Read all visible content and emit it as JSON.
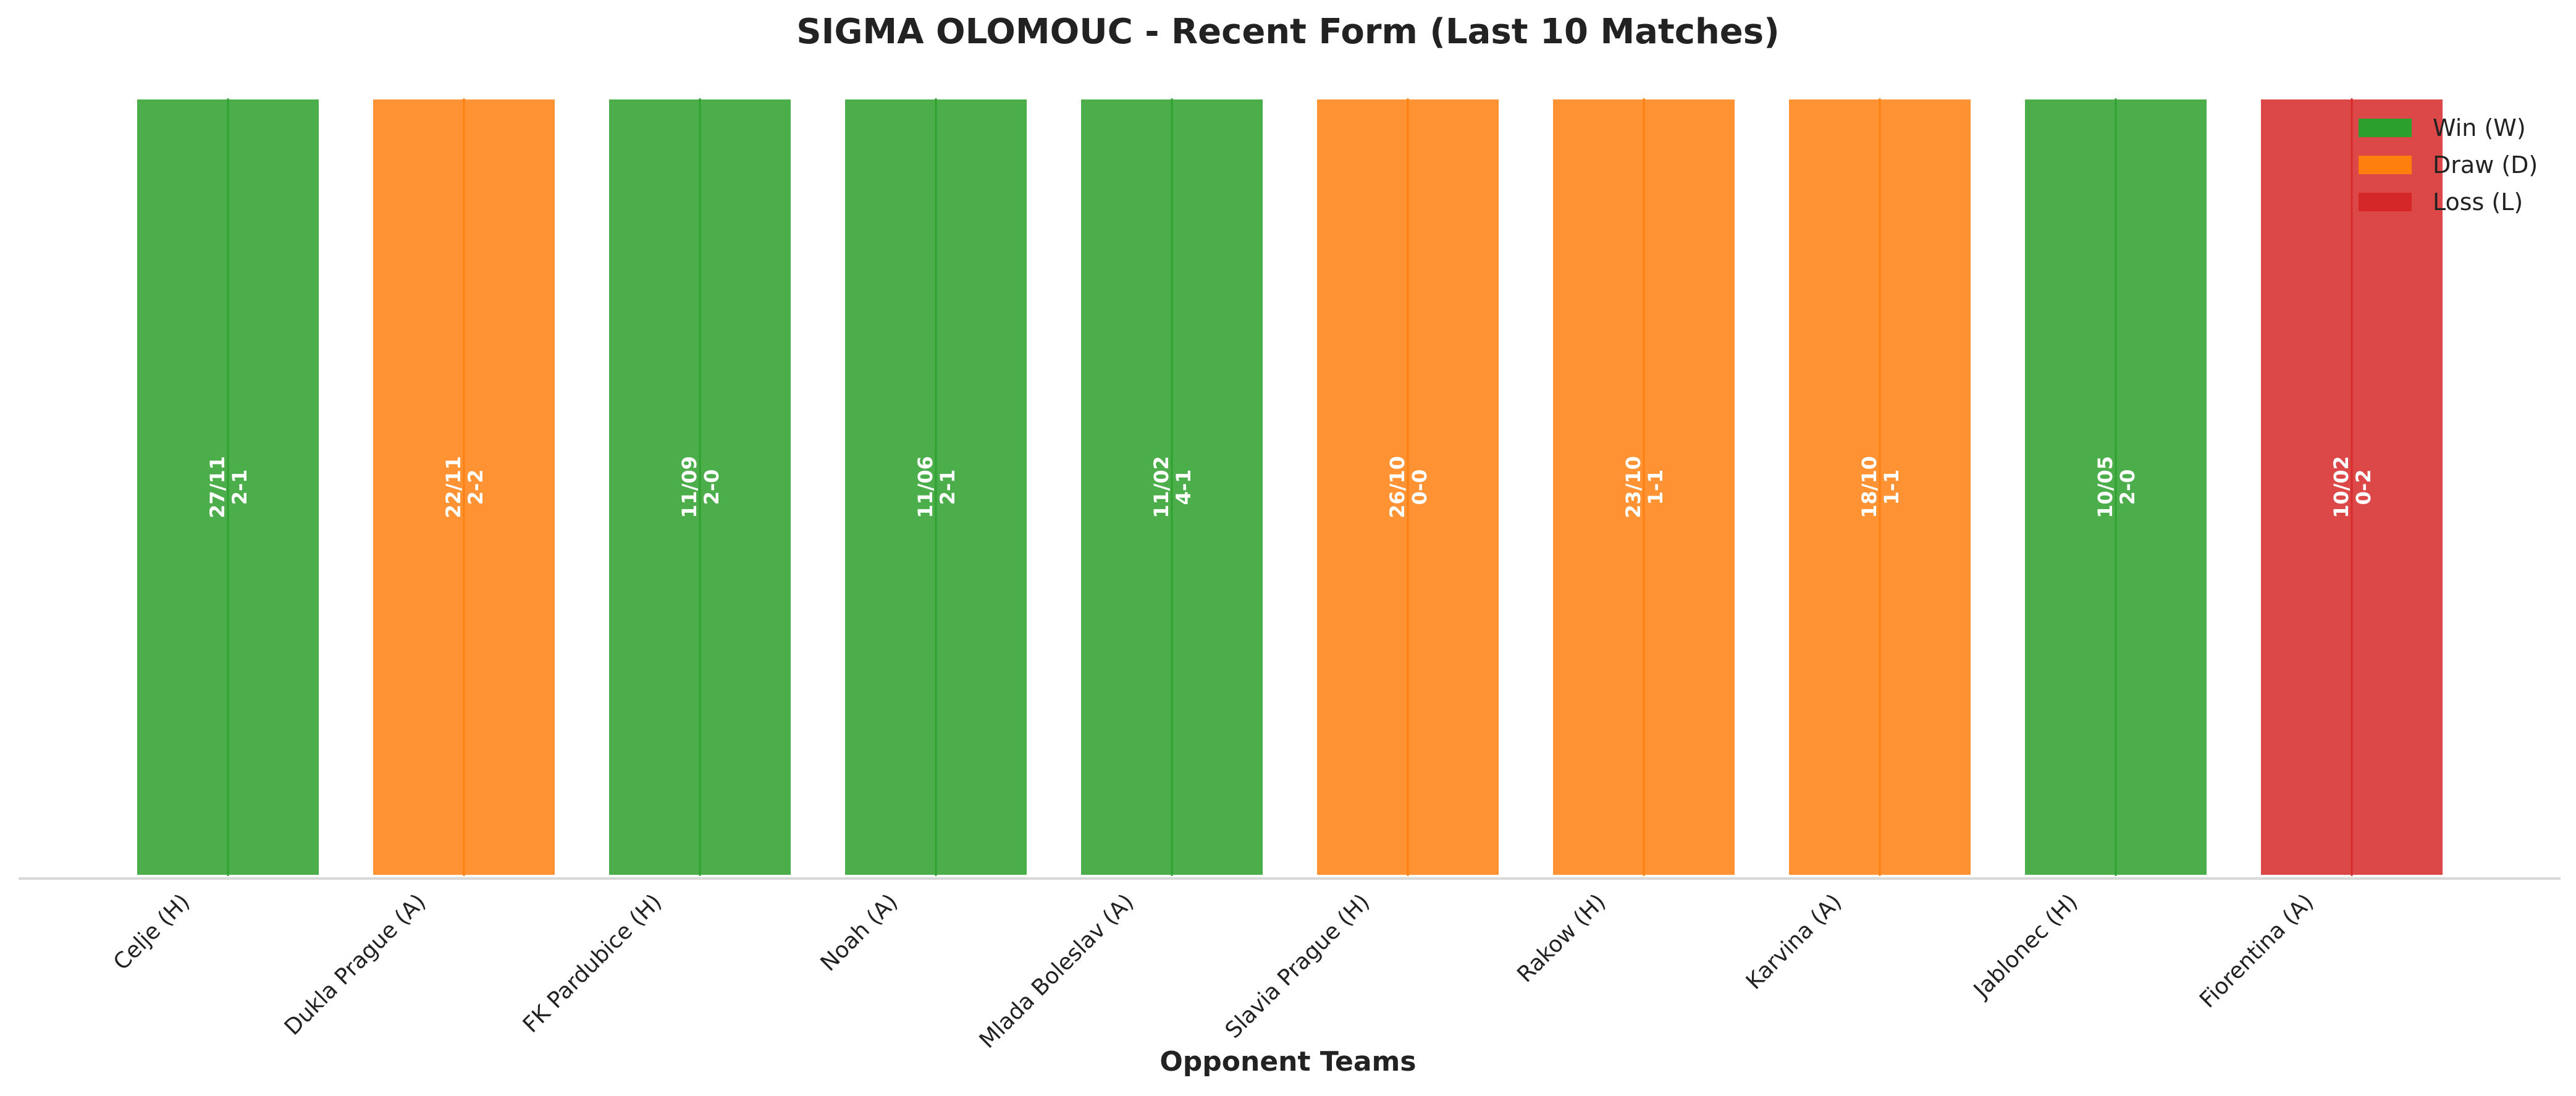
{
  "chart_data": {
    "type": "bar",
    "title": "SIGMA OLOMOUC - Recent Form (Last 10 Matches)",
    "xlabel": "Opponent Teams",
    "ylabel": "",
    "ylim": [
      0,
      1
    ],
    "grid": false,
    "legend_position": "top-right",
    "colors": {
      "W": "#2ca02c",
      "D": "#ff7f0e",
      "L": "#d62728"
    },
    "legend": [
      {
        "key": "W",
        "label": "Win (W)"
      },
      {
        "key": "D",
        "label": "Draw (D)"
      },
      {
        "key": "L",
        "label": "Loss (L)"
      }
    ],
    "categories": [
      "Celje (H)",
      "Dukla Prague (A)",
      "FK Pardubice (H)",
      "Noah (A)",
      "Mlada Boleslav (A)",
      "Slavia Prague (H)",
      "Rakow (H)",
      "Karvina (A)",
      "Jablonec (H)",
      "Fiorentina (A)"
    ],
    "values": [
      1,
      1,
      1,
      1,
      1,
      1,
      1,
      1,
      1,
      1
    ],
    "results": [
      "W",
      "D",
      "W",
      "W",
      "W",
      "D",
      "D",
      "D",
      "W",
      "L"
    ],
    "dates": [
      "27/11",
      "22/11",
      "11/09",
      "11/06",
      "11/02",
      "26/10",
      "23/10",
      "18/10",
      "10/05",
      "10/02"
    ],
    "scores": [
      "2-1",
      "2-2",
      "2-0",
      "2-1",
      "4-1",
      "0-0",
      "1-1",
      "1-1",
      "2-0",
      "0-2"
    ]
  }
}
